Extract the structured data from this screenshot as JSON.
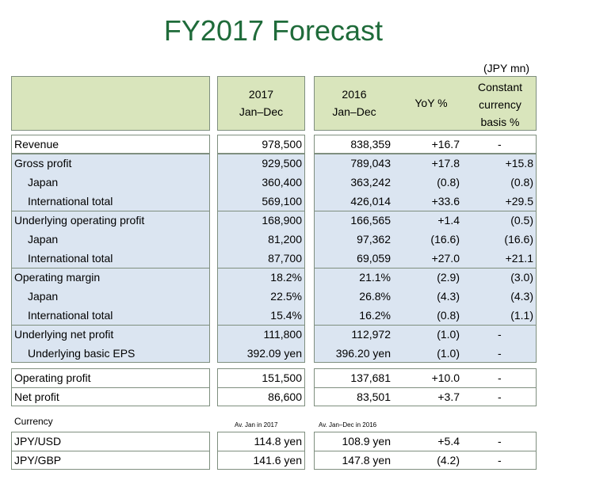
{
  "title": "FY2017 Forecast",
  "unit": "(JPY mn)",
  "header": {
    "col_2017_line1": "2017",
    "col_2017_line2": "Jan–Dec",
    "col_2016_line1": "2016",
    "col_2016_line2": "Jan–Dec",
    "col_yoy": "YoY %",
    "col_cc_line1": "Constant",
    "col_cc_line2": "currency",
    "col_cc_line3": "basis %"
  },
  "rows": [
    {
      "label": "Revenue",
      "v2017": "978,500",
      "v2016": "838,359",
      "yoy": "+16.7",
      "cc": "-"
    },
    {
      "label": "Gross profit",
      "v2017": "929,500",
      "v2016": "789,043",
      "yoy": "+17.8",
      "cc": "+15.8"
    },
    {
      "label": "Japan",
      "v2017": "360,400",
      "v2016": "363,242",
      "yoy": "(0.8)",
      "cc": "(0.8)"
    },
    {
      "label": "International total",
      "v2017": "569,100",
      "v2016": "426,014",
      "yoy": "+33.6",
      "cc": "+29.5"
    },
    {
      "label": "Underlying operating profit",
      "v2017": "168,900",
      "v2016": "166,565",
      "yoy": "+1.4",
      "cc": "(0.5)"
    },
    {
      "label": "Japan",
      "v2017": "81,200",
      "v2016": "97,362",
      "yoy": "(16.6)",
      "cc": "(16.6)"
    },
    {
      "label": "International total",
      "v2017": "87,700",
      "v2016": "69,059",
      "yoy": "+27.0",
      "cc": "+21.1"
    },
    {
      "label": "Operating margin",
      "v2017": "18.2%",
      "v2016": "21.1%",
      "yoy": "(2.9)",
      "cc": "(3.0)"
    },
    {
      "label": "Japan",
      "v2017": "22.5%",
      "v2016": "26.8%",
      "yoy": "(4.3)",
      "cc": "(4.3)"
    },
    {
      "label": "International total",
      "v2017": "15.4%",
      "v2016": "16.2%",
      "yoy": "(0.8)",
      "cc": "(1.1)"
    },
    {
      "label": "Underlying net profit",
      "v2017": "111,800",
      "v2016": "112,972",
      "yoy": "(1.0)",
      "cc": "-"
    },
    {
      "label": "Underlying basic EPS",
      "v2017": "392.09 yen",
      "v2016": "396.20 yen",
      "yoy": "(1.0)",
      "cc": "-"
    },
    {
      "label": "Operating profit",
      "v2017": "151,500",
      "v2016": "137,681",
      "yoy": "+10.0",
      "cc": "-"
    },
    {
      "label": "Net profit",
      "v2017": "86,600",
      "v2016": "83,501",
      "yoy": "+3.7",
      "cc": "-"
    }
  ],
  "currency": {
    "label": "Currency",
    "note_2017": "Av. Jan in 2017",
    "note_2016": "Av. Jan–Dec in 2016",
    "rows": [
      {
        "label": "JPY/USD",
        "v2017": "114.8 yen",
        "v2016": "108.9 yen",
        "yoy": "+5.4",
        "cc": "-"
      },
      {
        "label": "JPY/GBP",
        "v2017": "141.6 yen",
        "v2016": "147.8 yen",
        "yoy": "(4.2)",
        "cc": "-"
      }
    ]
  }
}
